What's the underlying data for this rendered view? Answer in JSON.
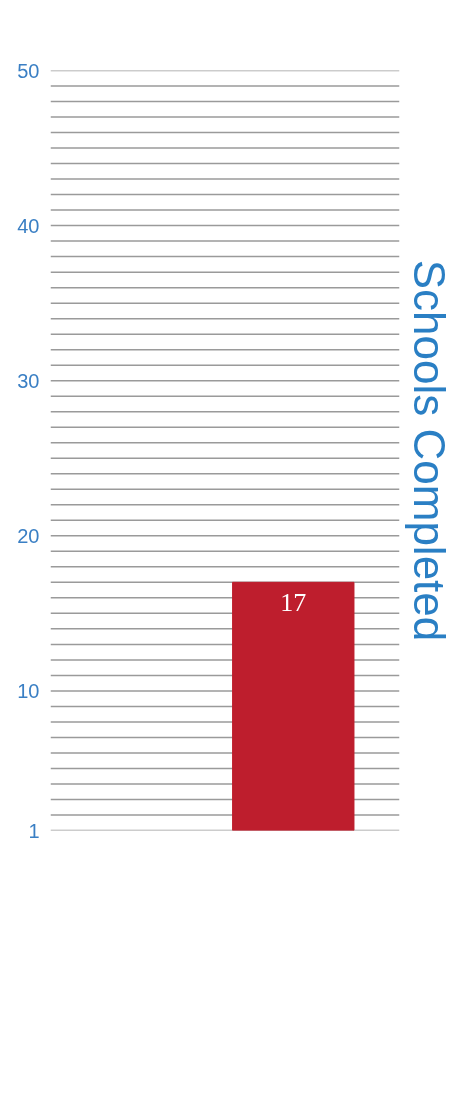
{
  "chart_data": {
    "type": "bar",
    "ylabel": "Schools Completed",
    "categories": [
      null
    ],
    "values": [
      17
    ],
    "colors": [
      "#be1e2d"
    ],
    "data_labels": true,
    "ylim": [
      1,
      50
    ],
    "yticks": [
      1,
      {
        "value": 2,
        "label": null
      },
      {
        "value": 3,
        "label": null
      },
      {
        "value": 4,
        "label": null
      },
      {
        "value": 5,
        "label": null
      },
      {
        "value": 6,
        "label": null
      },
      {
        "value": 7,
        "label": null
      },
      {
        "value": 8,
        "label": null
      },
      {
        "value": 9,
        "label": null
      },
      10,
      {
        "value": 11,
        "label": null
      },
      {
        "value": 12,
        "label": null
      },
      {
        "value": 13,
        "label": null
      },
      {
        "value": 14,
        "label": null
      },
      {
        "value": 15,
        "label": null
      },
      {
        "value": 16,
        "label": null
      },
      {
        "value": 17,
        "label": null
      },
      {
        "value": 18,
        "label": null
      },
      {
        "value": 19,
        "label": null
      },
      20,
      {
        "value": 21,
        "label": null
      },
      {
        "value": 22,
        "label": null
      },
      {
        "value": 23,
        "label": null
      },
      {
        "value": 24,
        "label": null
      },
      {
        "value": 25,
        "label": null
      },
      {
        "value": 26,
        "label": null
      },
      {
        "value": 27,
        "label": null
      },
      {
        "value": 28,
        "label": null
      },
      {
        "value": 29,
        "label": null
      },
      30,
      {
        "value": 31,
        "label": null
      },
      {
        "value": 32,
        "label": null
      },
      {
        "value": 33,
        "label": null
      },
      {
        "value": 34,
        "label": null
      },
      {
        "value": 35,
        "label": null
      },
      {
        "value": 36,
        "label": null
      },
      {
        "value": 37,
        "label": null
      },
      {
        "value": 38,
        "label": null
      },
      {
        "value": 39,
        "label": null
      },
      40,
      {
        "value": 41,
        "label": null
      },
      {
        "value": 42,
        "label": null
      },
      {
        "value": 43,
        "label": null
      },
      {
        "value": 44,
        "label": null
      },
      {
        "value": 45,
        "label": null
      },
      {
        "value": 46,
        "label": null
      },
      {
        "value": 47,
        "label": null
      },
      {
        "value": 48,
        "label": null
      },
      {
        "value": 49,
        "label": null
      },
      50
    ],
    "grid": "y",
    "tick_labels": "y"
  }
}
